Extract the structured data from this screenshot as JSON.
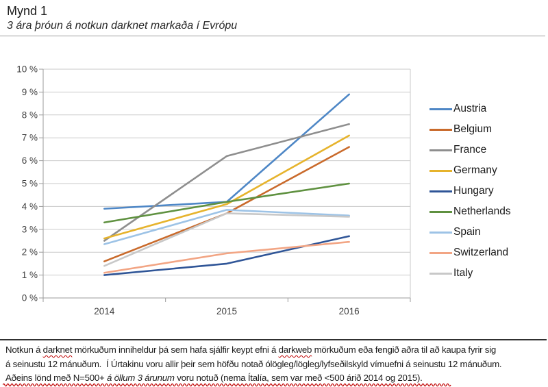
{
  "header": {
    "title": "Mynd 1",
    "subtitle": "3 ára þróun á notkun darknet markaða í Evrópu"
  },
  "chart_data": {
    "type": "line",
    "title": "",
    "xlabel": "",
    "ylabel": "",
    "categories": [
      "2014",
      "2015",
      "2016"
    ],
    "series": [
      {
        "name": "Austria",
        "color": "#4E87C6",
        "values": [
          3.9,
          4.2,
          8.9
        ]
      },
      {
        "name": "Belgium",
        "color": "#C96A2B",
        "values": [
          1.6,
          3.7,
          6.6
        ]
      },
      {
        "name": "France",
        "color": "#8E8E8E",
        "values": [
          2.5,
          6.2,
          7.6
        ]
      },
      {
        "name": "Germany",
        "color": "#E6B32C",
        "values": [
          2.6,
          4.1,
          7.1
        ]
      },
      {
        "name": "Hungary",
        "color": "#2F5597",
        "values": [
          1.0,
          1.5,
          2.7
        ]
      },
      {
        "name": "Netherlands",
        "color": "#5F9140",
        "values": [
          3.3,
          4.2,
          5.0
        ]
      },
      {
        "name": "Spain",
        "color": "#9DC3E6",
        "values": [
          2.35,
          3.85,
          3.6
        ]
      },
      {
        "name": "Switzerland",
        "color": "#F2A584",
        "values": [
          1.1,
          1.95,
          2.45
        ]
      },
      {
        "name": "Italy",
        "color": "#C8C8C8",
        "values": [
          1.4,
          3.7,
          3.55
        ]
      }
    ],
    "ylim": [
      0,
      10
    ],
    "ytick_step": 1,
    "ytick_suffix": " %",
    "grid": true,
    "legend_position": "right"
  },
  "footer": {
    "line1": [
      {
        "text": "Notkun á "
      },
      {
        "text": "darknet",
        "squiggle": true
      },
      {
        "text": " mörkuðum inniheldur þá sem hafa sjálfir keypt efni á "
      },
      {
        "text": "darkweb",
        "squiggle": true
      },
      {
        "text": " mörkuðum eða fengið aðra til að kaupa fyrir sig"
      }
    ],
    "line2": [
      {
        "text": "á seinustu 12 mánuðum.  Í Úrtakinu voru allir þeir sem höfðu notað ólögleg/lögleg/lyfseðilskyld vímuefni á seinustu 12 mánuðum."
      }
    ],
    "line3": [
      {
        "text": "Aðeins lönd með N=500+ "
      },
      {
        "text": "á öllum 3 árunum",
        "italic": true
      },
      {
        "text": " voru notuð (nema Ítalía, sem var með <500 árið 2014 og 2015)."
      }
    ]
  }
}
